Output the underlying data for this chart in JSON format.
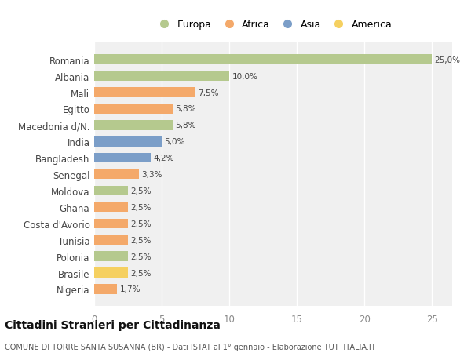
{
  "categories": [
    "Romania",
    "Albania",
    "Mali",
    "Egitto",
    "Macedonia d/N.",
    "India",
    "Bangladesh",
    "Senegal",
    "Moldova",
    "Ghana",
    "Costa d'Avorio",
    "Tunisia",
    "Polonia",
    "Brasile",
    "Nigeria"
  ],
  "values": [
    25.0,
    10.0,
    7.5,
    5.8,
    5.8,
    5.0,
    4.2,
    3.3,
    2.5,
    2.5,
    2.5,
    2.5,
    2.5,
    2.5,
    1.7
  ],
  "labels": [
    "25,0%",
    "10,0%",
    "7,5%",
    "5,8%",
    "5,8%",
    "5,0%",
    "4,2%",
    "3,3%",
    "2,5%",
    "2,5%",
    "2,5%",
    "2,5%",
    "2,5%",
    "2,5%",
    "1,7%"
  ],
  "colors": [
    "#b5c98e",
    "#b5c98e",
    "#f4a96a",
    "#f4a96a",
    "#b5c98e",
    "#7b9ec8",
    "#7b9ec8",
    "#f4a96a",
    "#b5c98e",
    "#f4a96a",
    "#f4a96a",
    "#f4a96a",
    "#b5c98e",
    "#f5d060",
    "#f4a96a"
  ],
  "legend_labels": [
    "Europa",
    "Africa",
    "Asia",
    "America"
  ],
  "legend_colors": [
    "#b5c98e",
    "#f4a96a",
    "#7b9ec8",
    "#f5d060"
  ],
  "title": "Cittadini Stranieri per Cittadinanza",
  "subtitle": "COMUNE DI TORRE SANTA SUSANNA (BR) - Dati ISTAT al 1° gennaio - Elaborazione TUTTITALIA.IT",
  "xlim": [
    0,
    26.5
  ],
  "xticks": [
    0,
    5,
    10,
    15,
    20,
    25
  ],
  "background_color": "#ffffff",
  "plot_bg_color": "#f0f0f0"
}
